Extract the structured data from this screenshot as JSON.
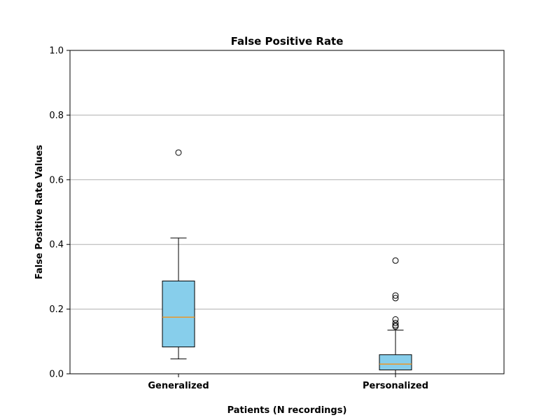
{
  "chart_data": {
    "type": "box",
    "title": "False Positive Rate",
    "xlabel": "Patients (N recordings)",
    "ylabel": "False Positive Rate Values",
    "ylim": [
      0.0,
      1.0
    ],
    "yticks": [
      0.0,
      0.2,
      0.4,
      0.6,
      0.8,
      1.0
    ],
    "ytick_labels": [
      "0.0",
      "0.2",
      "0.4",
      "0.6",
      "0.8",
      "1.0"
    ],
    "grid": "y",
    "categories": [
      "Generalized",
      "Personalized"
    ],
    "boxes": [
      {
        "whisker_low": 0.046,
        "q1": 0.083,
        "median": 0.175,
        "q3": 0.287,
        "whisker_high": 0.42,
        "outliers": [
          0.684
        ]
      },
      {
        "whisker_low": 0.0,
        "q1": 0.012,
        "median": 0.03,
        "q3": 0.059,
        "whisker_high": 0.135,
        "outliers": [
          0.35,
          0.242,
          0.234,
          0.168,
          0.157,
          0.15,
          0.146
        ]
      }
    ],
    "colors": {
      "box_fill": "#87ceeb",
      "median": "#ff8c00",
      "grid": "#b0b0b0"
    }
  }
}
